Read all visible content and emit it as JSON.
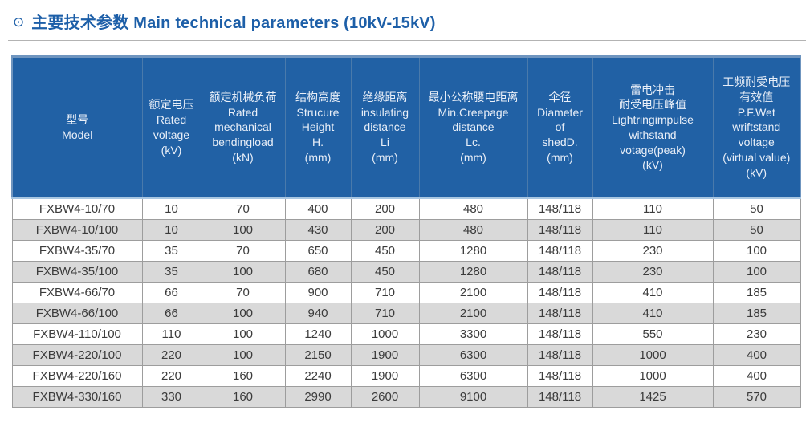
{
  "header": {
    "icon": "⊙",
    "title": "主要技术参数 Main technical parameters (10kV-15kV)"
  },
  "colors": {
    "accent_blue": "#1d5fa8",
    "table_header_bg": "#2161a5",
    "table_header_text": "#e9eff8",
    "row_alt_bg": "#d9d9d9",
    "body_text": "#3b3b3b",
    "grid_line": "#9d9d9d"
  },
  "table": {
    "columns": [
      {
        "key": "model",
        "text": "型号\nModel"
      },
      {
        "key": "rated-voltage",
        "text": "额定电压\nRated\nvoltage\n(kV)"
      },
      {
        "key": "rated-mechanical-bendingload",
        "text": "额定机械负荷\nRated\nmechanical\nbendingload\n(kN)"
      },
      {
        "key": "structure-height",
        "text": "结构高度\nStrucure\nHeight\nH.\n(mm)"
      },
      {
        "key": "insulating-distance",
        "text": "绝缘距离\ninsulating\ndistance\nLi\n(mm)"
      },
      {
        "key": "min-creepage-distance",
        "text": "最小公称腰电距离\nMin.Creepage\ndistance\nLc.\n(mm)"
      },
      {
        "key": "diameter-of-shed",
        "text": "伞径\nDiameter\nof\nshedD.\n(mm)"
      },
      {
        "key": "lightning-impulse-withstand",
        "text": "雷电冲击\n耐受电压峰值\nLightringimpulse\nwithstand\nvotage(peak)\n(kV)"
      },
      {
        "key": "pf-wet-withstand",
        "text": "工频耐受电压\n有效值\nP.F.Wet\nwriftstand\nvoltage\n(virtual value)\n(kV)"
      }
    ],
    "rows": [
      [
        "FXBW4-10/70",
        "10",
        "70",
        "400",
        "200",
        "480",
        "148/118",
        "110",
        "50"
      ],
      [
        "FXBW4-10/100",
        "10",
        "100",
        "430",
        "200",
        "480",
        "148/118",
        "110",
        "50"
      ],
      [
        "FXBW4-35/70",
        "35",
        "70",
        "650",
        "450",
        "1280",
        "148/118",
        "230",
        "100"
      ],
      [
        "FXBW4-35/100",
        "35",
        "100",
        "680",
        "450",
        "1280",
        "148/118",
        "230",
        "100"
      ],
      [
        "FXBW4-66/70",
        "66",
        "70",
        "900",
        "710",
        "2100",
        "148/118",
        "410",
        "185"
      ],
      [
        "FXBW4-66/100",
        "66",
        "100",
        "940",
        "710",
        "2100",
        "148/118",
        "410",
        "185"
      ],
      [
        "FXBW4-110/100",
        "110",
        "100",
        "1240",
        "1000",
        "3300",
        "148/118",
        "550",
        "230"
      ],
      [
        "FXBW4-220/100",
        "220",
        "100",
        "2150",
        "1900",
        "6300",
        "148/118",
        "1000",
        "400"
      ],
      [
        "FXBW4-220/160",
        "220",
        "160",
        "2240",
        "1900",
        "6300",
        "148/118",
        "1000",
        "400"
      ],
      [
        "FXBW4-330/160",
        "330",
        "160",
        "2990",
        "2600",
        "9100",
        "148/118",
        "1425",
        "570"
      ]
    ]
  }
}
